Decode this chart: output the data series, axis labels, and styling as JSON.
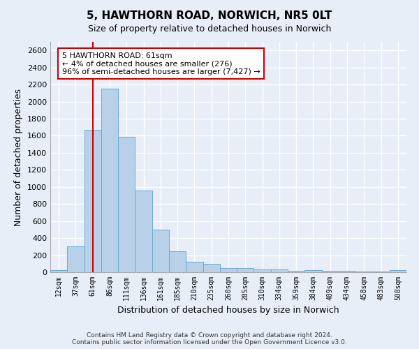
{
  "title": "5, HAWTHORN ROAD, NORWICH, NR5 0LT",
  "subtitle": "Size of property relative to detached houses in Norwich",
  "xlabel": "Distribution of detached houses by size in Norwich",
  "ylabel": "Number of detached properties",
  "footnote1": "Contains HM Land Registry data © Crown copyright and database right 2024.",
  "footnote2": "Contains public sector information licensed under the Open Government Licence v3.0.",
  "categories": [
    "12sqm",
    "37sqm",
    "61sqm",
    "86sqm",
    "111sqm",
    "136sqm",
    "161sqm",
    "185sqm",
    "210sqm",
    "235sqm",
    "260sqm",
    "285sqm",
    "310sqm",
    "334sqm",
    "359sqm",
    "384sqm",
    "409sqm",
    "434sqm",
    "458sqm",
    "483sqm",
    "508sqm"
  ],
  "values": [
    25,
    300,
    1670,
    2150,
    1590,
    960,
    500,
    248,
    120,
    100,
    50,
    50,
    30,
    30,
    15,
    25,
    15,
    20,
    5,
    10,
    25
  ],
  "bar_color": "#b8d0e8",
  "bar_edge_color": "#6aaad4",
  "vline_x_index": 2,
  "vline_color": "#cc0000",
  "annotation_text": "5 HAWTHORN ROAD: 61sqm\n← 4% of detached houses are smaller (276)\n96% of semi-detached houses are larger (7,427) →",
  "annotation_box_color": "#ffffff",
  "annotation_box_edge": "#cc0000",
  "ylim": [
    0,
    2700
  ],
  "yticks": [
    0,
    200,
    400,
    600,
    800,
    1000,
    1200,
    1400,
    1600,
    1800,
    2000,
    2200,
    2400,
    2600
  ],
  "background_color": "#e8eef8",
  "plot_bg_color": "#e8eef8",
  "grid_color": "#ffffff",
  "title_fontsize": 11,
  "subtitle_fontsize": 9,
  "ylabel_fontsize": 9,
  "xlabel_fontsize": 9,
  "tick_fontsize": 8
}
